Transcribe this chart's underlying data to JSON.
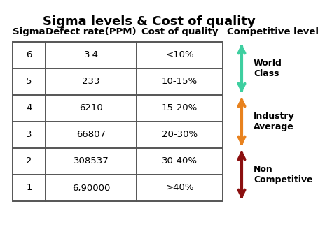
{
  "title": "Sigma levels & Cost of quality",
  "col_headers": [
    "Sigma",
    "Defect rate(PPM)",
    "Cost of quality"
  ],
  "competitive_label": "Competitive level",
  "rows": [
    [
      "6",
      "3.4",
      "<10%"
    ],
    [
      "5",
      "233",
      "10-15%"
    ],
    [
      "4",
      "6210",
      "15-20%"
    ],
    [
      "3",
      "66807",
      "20-30%"
    ],
    [
      "2",
      "308537",
      "30-40%"
    ],
    [
      "1",
      "6,90000",
      ">40%"
    ]
  ],
  "arrows": [
    {
      "label": "World\nClass",
      "color": "#3ECFA0"
    },
    {
      "label": "Industry\nAverage",
      "color": "#E8821E"
    },
    {
      "label": "Non\nCompetitive",
      "color": "#8B1010"
    }
  ],
  "bg_color": "#FFFFFF",
  "text_color": "#000000",
  "title_fontsize": 13,
  "header_fontsize": 9.5,
  "cell_fontsize": 9.5,
  "arrow_fontsize": 9
}
